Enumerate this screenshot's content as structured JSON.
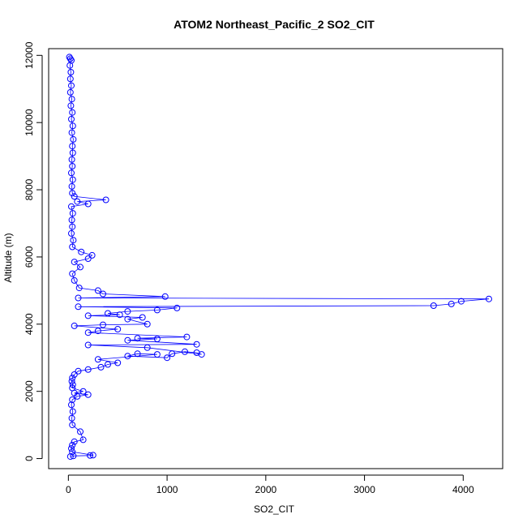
{
  "chart_data": {
    "type": "scatter",
    "title": "ATOM2 Northeast_Pacific_2 SO2_CIT",
    "xlabel": "SO2_CIT",
    "ylabel": "Altitude (m)",
    "xlim": [
      -200,
      4400
    ],
    "ylim": [
      -300,
      12200
    ],
    "xticks": [
      0,
      1000,
      2000,
      3000,
      4000
    ],
    "xtick_labels": [
      "0",
      "1000",
      "2000",
      "3000",
      "4000"
    ],
    "yticks": [
      0,
      2000,
      4000,
      6000,
      8000,
      10000,
      12000
    ],
    "ytick_labels": [
      "0",
      "2000",
      "4000",
      "6000",
      "8000",
      "10000",
      "12000"
    ],
    "grid": false,
    "legend": "none",
    "series": [
      {
        "marker": "open-circle",
        "line": true,
        "color": "#0000ff",
        "points": [
          [
            10,
            11950
          ],
          [
            20,
            11900
          ],
          [
            30,
            11850
          ],
          [
            15,
            11700
          ],
          [
            25,
            11500
          ],
          [
            20,
            11300
          ],
          [
            30,
            11100
          ],
          [
            20,
            10900
          ],
          [
            35,
            10700
          ],
          [
            25,
            10500
          ],
          [
            40,
            10300
          ],
          [
            30,
            10100
          ],
          [
            45,
            9900
          ],
          [
            35,
            9700
          ],
          [
            50,
            9500
          ],
          [
            40,
            9300
          ],
          [
            45,
            9100
          ],
          [
            35,
            8900
          ],
          [
            40,
            8700
          ],
          [
            30,
            8500
          ],
          [
            45,
            8300
          ],
          [
            35,
            8100
          ],
          [
            40,
            7900
          ],
          [
            60,
            7800
          ],
          [
            380,
            7700
          ],
          [
            90,
            7650
          ],
          [
            200,
            7580
          ],
          [
            30,
            7500
          ],
          [
            45,
            7300
          ],
          [
            35,
            7100
          ],
          [
            40,
            6900
          ],
          [
            30,
            6700
          ],
          [
            50,
            6500
          ],
          [
            40,
            6300
          ],
          [
            130,
            6150
          ],
          [
            240,
            6050
          ],
          [
            200,
            5950
          ],
          [
            60,
            5850
          ],
          [
            120,
            5700
          ],
          [
            40,
            5500
          ],
          [
            60,
            5300
          ],
          [
            110,
            5080
          ],
          [
            300,
            5000
          ],
          [
            350,
            4900
          ],
          [
            980,
            4820
          ],
          [
            100,
            4780
          ],
          [
            4260,
            4750
          ],
          [
            3980,
            4680
          ],
          [
            3880,
            4600
          ],
          [
            3700,
            4550
          ],
          [
            100,
            4520
          ],
          [
            1100,
            4480
          ],
          [
            900,
            4420
          ],
          [
            600,
            4380
          ],
          [
            400,
            4320
          ],
          [
            520,
            4280
          ],
          [
            200,
            4250
          ],
          [
            750,
            4200
          ],
          [
            600,
            4150
          ],
          [
            800,
            4000
          ],
          [
            350,
            3980
          ],
          [
            60,
            3950
          ],
          [
            500,
            3850
          ],
          [
            300,
            3800
          ],
          [
            200,
            3750
          ],
          [
            1200,
            3620
          ],
          [
            700,
            3580
          ],
          [
            900,
            3560
          ],
          [
            600,
            3520
          ],
          [
            1300,
            3400
          ],
          [
            200,
            3380
          ],
          [
            800,
            3300
          ],
          [
            1350,
            3100
          ],
          [
            1300,
            3150
          ],
          [
            1180,
            3180
          ],
          [
            1050,
            3120
          ],
          [
            1000,
            3000
          ],
          [
            600,
            3050
          ],
          [
            700,
            3120
          ],
          [
            900,
            3100
          ],
          [
            300,
            2950
          ],
          [
            500,
            2850
          ],
          [
            400,
            2800
          ],
          [
            330,
            2720
          ],
          [
            200,
            2650
          ],
          [
            100,
            2600
          ],
          [
            60,
            2500
          ],
          [
            40,
            2400
          ],
          [
            35,
            2300
          ],
          [
            45,
            2200
          ],
          [
            40,
            2100
          ],
          [
            150,
            2000
          ],
          [
            60,
            1950
          ],
          [
            200,
            1900
          ],
          [
            90,
            1850
          ],
          [
            40,
            1750
          ],
          [
            30,
            1600
          ],
          [
            45,
            1400
          ],
          [
            35,
            1200
          ],
          [
            40,
            1000
          ],
          [
            120,
            800
          ],
          [
            150,
            560
          ],
          [
            60,
            500
          ],
          [
            40,
            400
          ],
          [
            30,
            300
          ],
          [
            40,
            200
          ],
          [
            250,
            100
          ],
          [
            220,
            90
          ],
          [
            50,
            80
          ],
          [
            20,
            60
          ]
        ]
      }
    ]
  }
}
